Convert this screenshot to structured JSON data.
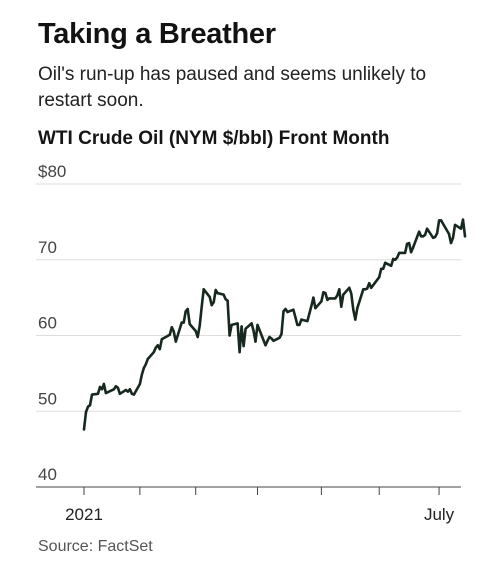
{
  "header": {
    "title": "Taking a Breather",
    "subtitle": "Oil's run-up has paused and seems unlikely to restart soon."
  },
  "footer": {
    "source": "Source: FactSet"
  },
  "colors": {
    "line": "#17291f",
    "grid": "#dddddd",
    "axis": "#444444"
  },
  "chart_data": {
    "type": "line",
    "title": "WTI Crude Oil (NYM $/bbl) Front Month",
    "xlabel": "",
    "ylabel": "",
    "ylim": [
      40,
      80
    ],
    "grid": true,
    "y_ticks": [
      {
        "value": 80,
        "label": "$80"
      },
      {
        "value": 70,
        "label": "70"
      },
      {
        "value": 60,
        "label": "60"
      },
      {
        "value": 50,
        "label": "50"
      },
      {
        "value": 40,
        "label": "40"
      }
    ],
    "x_ticks": [
      {
        "x": "2021-01-04",
        "label": "2021"
      },
      {
        "x": "2021-02-01",
        "label": ""
      },
      {
        "x": "2021-03-01",
        "label": ""
      },
      {
        "x": "2021-04-01",
        "label": ""
      },
      {
        "x": "2021-05-03",
        "label": ""
      },
      {
        "x": "2021-06-01",
        "label": ""
      },
      {
        "x": "2021-07-01",
        "label": "July"
      }
    ],
    "x_range": [
      "2021-01-04",
      "2021-07-12"
    ],
    "series": [
      {
        "name": "",
        "points": [
          [
            "2021-01-04",
            47.6
          ],
          [
            "2021-01-05",
            49.9
          ],
          [
            "2021-01-06",
            50.6
          ],
          [
            "2021-01-07",
            50.8
          ],
          [
            "2021-01-08",
            52.2
          ],
          [
            "2021-01-11",
            52.3
          ],
          [
            "2021-01-12",
            53.2
          ],
          [
            "2021-01-13",
            52.9
          ],
          [
            "2021-01-14",
            53.6
          ],
          [
            "2021-01-15",
            52.4
          ],
          [
            "2021-01-19",
            52.9
          ],
          [
            "2021-01-20",
            53.3
          ],
          [
            "2021-01-21",
            53.1
          ],
          [
            "2021-01-22",
            52.3
          ],
          [
            "2021-01-25",
            52.8
          ],
          [
            "2021-01-26",
            52.6
          ],
          [
            "2021-01-27",
            52.9
          ],
          [
            "2021-01-28",
            52.3
          ],
          [
            "2021-01-29",
            52.2
          ],
          [
            "2021-02-01",
            53.6
          ],
          [
            "2021-02-02",
            54.8
          ],
          [
            "2021-02-03",
            55.7
          ],
          [
            "2021-02-04",
            56.2
          ],
          [
            "2021-02-05",
            56.9
          ],
          [
            "2021-02-08",
            57.8
          ],
          [
            "2021-02-09",
            58.4
          ],
          [
            "2021-02-10",
            58.7
          ],
          [
            "2021-02-11",
            58.2
          ],
          [
            "2021-02-12",
            59.5
          ],
          [
            "2021-02-16",
            60.1
          ],
          [
            "2021-02-17",
            61.1
          ],
          [
            "2021-02-18",
            60.5
          ],
          [
            "2021-02-19",
            59.2
          ],
          [
            "2021-02-22",
            61.7
          ],
          [
            "2021-02-23",
            61.7
          ],
          [
            "2021-02-24",
            63.2
          ],
          [
            "2021-02-25",
            63.5
          ],
          [
            "2021-02-26",
            61.5
          ],
          [
            "2021-03-01",
            60.6
          ],
          [
            "2021-03-02",
            59.8
          ],
          [
            "2021-03-03",
            61.3
          ],
          [
            "2021-03-04",
            63.8
          ],
          [
            "2021-03-05",
            66.1
          ],
          [
            "2021-03-08",
            65.1
          ],
          [
            "2021-03-09",
            64.0
          ],
          [
            "2021-03-10",
            64.4
          ],
          [
            "2021-03-11",
            66.0
          ],
          [
            "2021-03-12",
            65.6
          ],
          [
            "2021-03-15",
            65.4
          ],
          [
            "2021-03-16",
            64.8
          ],
          [
            "2021-03-17",
            64.6
          ],
          [
            "2021-03-18",
            60.0
          ],
          [
            "2021-03-19",
            61.4
          ],
          [
            "2021-03-22",
            61.6
          ],
          [
            "2021-03-23",
            57.8
          ],
          [
            "2021-03-24",
            61.2
          ],
          [
            "2021-03-25",
            58.6
          ],
          [
            "2021-03-26",
            60.9
          ],
          [
            "2021-03-29",
            61.6
          ],
          [
            "2021-03-30",
            60.6
          ],
          [
            "2021-03-31",
            59.2
          ],
          [
            "2021-04-01",
            61.4
          ],
          [
            "2021-04-05",
            58.7
          ],
          [
            "2021-04-06",
            59.3
          ],
          [
            "2021-04-07",
            59.8
          ],
          [
            "2021-04-08",
            59.6
          ],
          [
            "2021-04-09",
            59.3
          ],
          [
            "2021-04-12",
            59.7
          ],
          [
            "2021-04-13",
            60.2
          ],
          [
            "2021-04-14",
            63.2
          ],
          [
            "2021-04-15",
            63.5
          ],
          [
            "2021-04-16",
            63.1
          ],
          [
            "2021-04-19",
            63.4
          ],
          [
            "2021-04-20",
            62.4
          ],
          [
            "2021-04-21",
            61.4
          ],
          [
            "2021-04-22",
            61.4
          ],
          [
            "2021-04-23",
            62.1
          ],
          [
            "2021-04-26",
            61.9
          ],
          [
            "2021-04-27",
            62.9
          ],
          [
            "2021-04-28",
            63.9
          ],
          [
            "2021-04-29",
            65.0
          ],
          [
            "2021-04-30",
            63.6
          ],
          [
            "2021-05-03",
            64.5
          ],
          [
            "2021-05-04",
            65.7
          ],
          [
            "2021-05-05",
            65.6
          ],
          [
            "2021-05-06",
            64.7
          ],
          [
            "2021-05-07",
            64.9
          ],
          [
            "2021-05-10",
            64.9
          ],
          [
            "2021-05-11",
            65.3
          ],
          [
            "2021-05-12",
            66.1
          ],
          [
            "2021-05-13",
            63.8
          ],
          [
            "2021-05-14",
            65.4
          ],
          [
            "2021-05-17",
            66.3
          ],
          [
            "2021-05-18",
            65.5
          ],
          [
            "2021-05-19",
            63.4
          ],
          [
            "2021-05-20",
            62.1
          ],
          [
            "2021-05-21",
            63.6
          ],
          [
            "2021-05-24",
            66.1
          ],
          [
            "2021-05-25",
            66.1
          ],
          [
            "2021-05-26",
            66.2
          ],
          [
            "2021-05-27",
            66.9
          ],
          [
            "2021-05-28",
            66.3
          ],
          [
            "2021-06-01",
            67.7
          ],
          [
            "2021-06-02",
            68.8
          ],
          [
            "2021-06-03",
            68.8
          ],
          [
            "2021-06-04",
            69.6
          ],
          [
            "2021-06-07",
            69.2
          ],
          [
            "2021-06-08",
            70.1
          ],
          [
            "2021-06-09",
            70.0
          ],
          [
            "2021-06-10",
            70.3
          ],
          [
            "2021-06-11",
            70.9
          ],
          [
            "2021-06-14",
            70.9
          ],
          [
            "2021-06-15",
            72.1
          ],
          [
            "2021-06-16",
            72.2
          ],
          [
            "2021-06-17",
            71.0
          ],
          [
            "2021-06-18",
            71.6
          ],
          [
            "2021-06-21",
            73.7
          ],
          [
            "2021-06-22",
            73.1
          ],
          [
            "2021-06-23",
            73.1
          ],
          [
            "2021-06-24",
            73.3
          ],
          [
            "2021-06-25",
            74.1
          ],
          [
            "2021-06-28",
            72.9
          ],
          [
            "2021-06-29",
            73.0
          ],
          [
            "2021-06-30",
            73.5
          ],
          [
            "2021-07-01",
            75.2
          ],
          [
            "2021-07-02",
            75.2
          ],
          [
            "2021-07-06",
            73.4
          ],
          [
            "2021-07-07",
            72.2
          ],
          [
            "2021-07-08",
            72.9
          ],
          [
            "2021-07-09",
            74.6
          ],
          [
            "2021-07-12",
            74.1
          ],
          [
            "2021-07-13",
            75.3
          ],
          [
            "2021-07-14",
            73.1
          ]
        ]
      }
    ]
  }
}
